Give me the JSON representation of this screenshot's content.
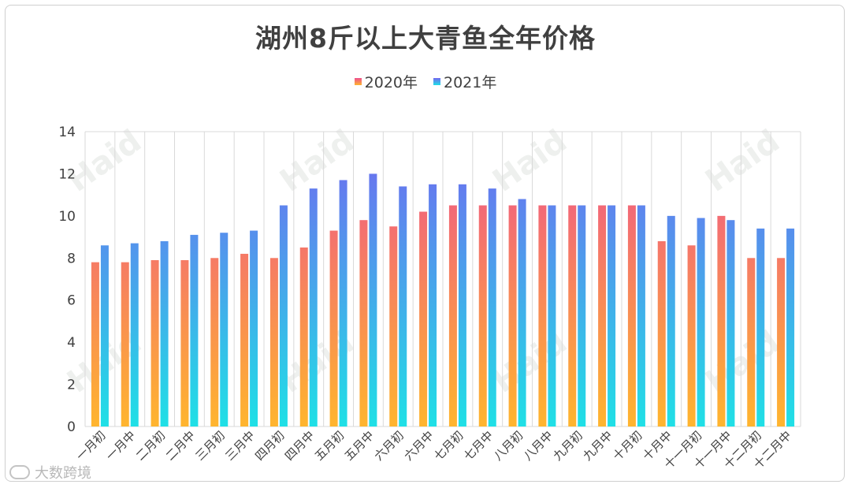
{
  "chart_data": {
    "type": "bar",
    "title": "湖州8斤以上大青鱼全年价格",
    "categories": [
      "一月初",
      "一月中",
      "二月初",
      "二月中",
      "三月初",
      "三月中",
      "四月初",
      "四月中",
      "五月初",
      "五月中",
      "六月初",
      "六月中",
      "七月初",
      "七月中",
      "八月初",
      "八月中",
      "九月初",
      "九月中",
      "十月初",
      "十月中",
      "十一月初",
      "十一月中",
      "十二月初",
      "十二月中"
    ],
    "series": [
      {
        "name": "2020年",
        "values": [
          7.8,
          7.8,
          7.9,
          7.9,
          8.0,
          8.2,
          8.0,
          8.5,
          9.3,
          9.8,
          9.5,
          10.2,
          10.5,
          10.5,
          10.5,
          10.5,
          10.5,
          10.5,
          10.5,
          8.8,
          8.6,
          10.0,
          8.0,
          8.0
        ]
      },
      {
        "name": "2021年",
        "values": [
          8.6,
          8.7,
          8.8,
          9.1,
          9.2,
          9.3,
          10.5,
          11.3,
          11.7,
          12.0,
          11.4,
          11.5,
          11.5,
          11.3,
          10.8,
          10.5,
          10.5,
          10.5,
          10.5,
          10.0,
          9.9,
          9.8,
          9.4,
          9.4
        ]
      }
    ],
    "yticks": [
      0,
      2,
      4,
      6,
      8,
      10,
      12,
      14
    ],
    "ylim": [
      0,
      14
    ],
    "xlabel": "",
    "ylabel": "",
    "grid": "vertical",
    "legend": "top-center"
  },
  "colors": {
    "s2020_top": "#ee4f8f",
    "s2020_bottom": "#ffb52e",
    "s2021_top": "#7366f0",
    "s2021_bottom": "#1fe0e6",
    "grid": "#d9d9d9",
    "text": "#404040"
  },
  "watermark": {
    "brand": "Haid",
    "source": "大数跨境"
  }
}
